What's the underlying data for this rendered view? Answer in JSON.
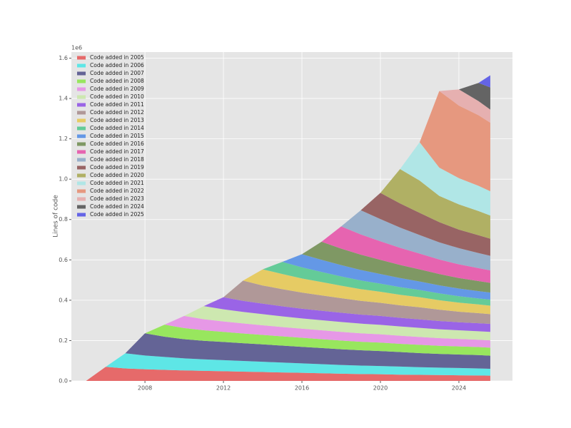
{
  "chart_data": {
    "type": "stackedarea",
    "ylabel": "Lines of code",
    "y_offset_label": "1e6",
    "x": [
      2005,
      2006,
      2007,
      2008,
      2009,
      2010,
      2011,
      2012,
      2013,
      2014,
      2015,
      2016,
      2017,
      2018,
      2019,
      2020,
      2021,
      2022,
      2023,
      2024,
      2025,
      2025.6
    ],
    "xlim": [
      2004.25,
      2026.73
    ],
    "xticks": [
      2008,
      2012,
      2016,
      2020,
      2024
    ],
    "ylim": [
      0,
      1630000
    ],
    "yticks": [
      {
        "value": 0,
        "label": "0.0"
      },
      {
        "value": 200000,
        "label": "0.2"
      },
      {
        "value": 400000,
        "label": "0.4"
      },
      {
        "value": 600000,
        "label": "0.6"
      },
      {
        "value": 800000,
        "label": "0.8"
      },
      {
        "value": 1000000,
        "label": "1.0"
      },
      {
        "value": 1200000,
        "label": "1.2"
      },
      {
        "value": 1400000,
        "label": "1.4"
      },
      {
        "value": 1600000,
        "label": "1.6"
      }
    ],
    "grid": true,
    "legend": "upper-left",
    "series": [
      {
        "name": "Code added in 2005",
        "color": "#e66a6a",
        "values": [
          0,
          70000,
          62000,
          58000,
          55000,
          52000,
          50000,
          48000,
          46000,
          44000,
          42000,
          40000,
          38000,
          36000,
          34000,
          33000,
          31000,
          30000,
          29000,
          28000,
          27000,
          26000
        ]
      },
      {
        "name": "Code added in 2006",
        "color": "#5ee6e6",
        "values": [
          0,
          0,
          75000,
          68000,
          64000,
          60000,
          57000,
          55000,
          53000,
          51000,
          49000,
          47000,
          45000,
          43000,
          42000,
          41000,
          40000,
          38000,
          37000,
          36000,
          35000,
          34000
        ]
      },
      {
        "name": "Code added in 2007",
        "color": "#646496",
        "values": [
          0,
          0,
          0,
          110000,
          100000,
          95000,
          92000,
          90000,
          88000,
          86000,
          84000,
          82000,
          80000,
          78000,
          76000,
          74000,
          72000,
          70000,
          68000,
          67000,
          66000,
          65000
        ]
      },
      {
        "name": "Code added in 2008",
        "color": "#98e65e",
        "values": [
          0,
          0,
          0,
          0,
          60000,
          55000,
          52000,
          50000,
          48000,
          47000,
          46000,
          45000,
          44000,
          43000,
          42000,
          42000,
          41000,
          41000,
          40000,
          40000,
          40000,
          40000
        ]
      },
      {
        "name": "Code added in 2009",
        "color": "#e698e6",
        "values": [
          0,
          0,
          0,
          0,
          0,
          60000,
          55000,
          52000,
          50000,
          48000,
          46000,
          45000,
          44000,
          43000,
          42000,
          41000,
          40000,
          39000,
          38000,
          37000,
          36000,
          36000
        ]
      },
      {
        "name": "Code added in 2010",
        "color": "#cde8b0",
        "values": [
          0,
          0,
          0,
          0,
          0,
          0,
          65000,
          60000,
          57000,
          55000,
          53000,
          51000,
          50000,
          49000,
          48000,
          47000,
          46000,
          45000,
          44000,
          43000,
          42000,
          42000
        ]
      },
      {
        "name": "Code added in 2011",
        "color": "#9a64e6",
        "values": [
          0,
          0,
          0,
          0,
          0,
          0,
          0,
          60000,
          55000,
          52000,
          50000,
          48000,
          47000,
          46000,
          45000,
          44000,
          43000,
          42000,
          41000,
          40000,
          40000,
          40000
        ]
      },
      {
        "name": "Code added in 2012",
        "color": "#b09898",
        "values": [
          0,
          0,
          0,
          0,
          0,
          0,
          0,
          0,
          100000,
          90000,
          85000,
          80000,
          76000,
          72000,
          68000,
          65000,
          62000,
          60000,
          56000,
          52000,
          50000,
          48000
        ]
      },
      {
        "name": "Code added in 2013",
        "color": "#e6cb64",
        "values": [
          0,
          0,
          0,
          0,
          0,
          0,
          0,
          0,
          0,
          80000,
          75000,
          70000,
          66000,
          62000,
          58000,
          55000,
          52000,
          50000,
          47000,
          45000,
          43000,
          42000
        ]
      },
      {
        "name": "Code added in 2014",
        "color": "#64cb98",
        "values": [
          0,
          0,
          0,
          0,
          0,
          0,
          0,
          0,
          0,
          0,
          60000,
          55000,
          50000,
          46000,
          43000,
          40000,
          38000,
          36000,
          34000,
          32000,
          30000,
          30000
        ]
      },
      {
        "name": "Code added in 2015",
        "color": "#6498e6",
        "values": [
          0,
          0,
          0,
          0,
          0,
          0,
          0,
          0,
          0,
          0,
          0,
          65000,
          60000,
          56000,
          52000,
          48000,
          45000,
          42000,
          40000,
          38000,
          36000,
          35000
        ]
      },
      {
        "name": "Code added in 2016",
        "color": "#7f9864",
        "values": [
          0,
          0,
          0,
          0,
          0,
          0,
          0,
          0,
          0,
          0,
          0,
          0,
          90000,
          82000,
          76000,
          70000,
          65000,
          60000,
          56000,
          52000,
          50000,
          48000
        ]
      },
      {
        "name": "Code added in 2017",
        "color": "#e664b0",
        "values": [
          0,
          0,
          0,
          0,
          0,
          0,
          0,
          0,
          0,
          0,
          0,
          0,
          0,
          110000,
          100000,
          92000,
          85000,
          78000,
          72000,
          68000,
          64000,
          62000
        ]
      },
      {
        "name": "Code added in 2018",
        "color": "#98b0cb",
        "values": [
          0,
          0,
          0,
          0,
          0,
          0,
          0,
          0,
          0,
          0,
          0,
          0,
          0,
          0,
          120000,
          110000,
          100000,
          92000,
          85000,
          80000,
          75000,
          72000
        ]
      },
      {
        "name": "Code added in 2019",
        "color": "#986464",
        "values": [
          0,
          0,
          0,
          0,
          0,
          0,
          0,
          0,
          0,
          0,
          0,
          0,
          0,
          0,
          0,
          130000,
          120000,
          110000,
          100000,
          92000,
          88000,
          85000
        ]
      },
      {
        "name": "Code added in 2020",
        "color": "#b0b064",
        "values": [
          0,
          0,
          0,
          0,
          0,
          0,
          0,
          0,
          0,
          0,
          0,
          0,
          0,
          0,
          0,
          0,
          170000,
          160000,
          130000,
          125000,
          120000,
          115000
        ]
      },
      {
        "name": "Code added in 2021",
        "color": "#b0e6e6",
        "values": [
          0,
          0,
          0,
          0,
          0,
          0,
          0,
          0,
          0,
          0,
          0,
          0,
          0,
          0,
          0,
          0,
          0,
          190000,
          140000,
          130000,
          125000,
          120000
        ]
      },
      {
        "name": "Code added in 2022",
        "color": "#e6987f",
        "values": [
          0,
          0,
          0,
          0,
          0,
          0,
          0,
          0,
          0,
          0,
          0,
          0,
          0,
          0,
          0,
          0,
          0,
          0,
          380000,
          360000,
          350000,
          340000
        ]
      },
      {
        "name": "Code added in 2023",
        "color": "#e6b0b0",
        "values": [
          0,
          0,
          0,
          0,
          0,
          0,
          0,
          0,
          0,
          0,
          0,
          0,
          0,
          0,
          0,
          0,
          0,
          0,
          0,
          80000,
          70000,
          65000
        ]
      },
      {
        "name": "Code added in 2024",
        "color": "#646464",
        "values": [
          0,
          0,
          0,
          0,
          0,
          0,
          0,
          0,
          0,
          0,
          0,
          0,
          0,
          0,
          0,
          0,
          0,
          0,
          0,
          0,
          90000,
          110000
        ]
      },
      {
        "name": "Code added in 2025",
        "color": "#6464e6",
        "values": [
          0,
          0,
          0,
          0,
          0,
          0,
          0,
          0,
          0,
          0,
          0,
          0,
          0,
          0,
          0,
          0,
          0,
          0,
          0,
          0,
          0,
          60000
        ]
      }
    ]
  }
}
